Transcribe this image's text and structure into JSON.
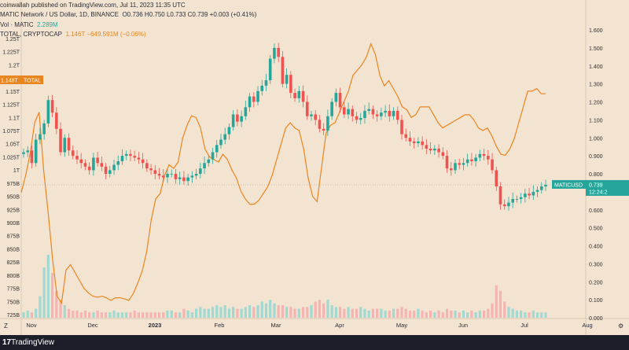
{
  "header": {
    "published": "coinwallah published on TradingView.com, Jul 11, 2023 11:35 UTC",
    "symbol": "MATIC Network / US Dollar, 1D, BINANCE",
    "ohlc": "O0.736  H0.750  L0.733  C0.739  +0.003 (+0.41%)",
    "vol_label": "Vol · MATIC",
    "vol_value": "2.289M",
    "total_label": "TOTAL, CRYPTOCAP",
    "total_value": "1.146T  −649.591M (−0.06%)"
  },
  "corner_left": "Z",
  "corner_right": "⚙",
  "footer": {
    "logo": "17",
    "brand": "TradingView"
  },
  "colors": {
    "up": "#26a69a",
    "down": "#ef5350",
    "total": "#e8851f",
    "vol_up": "#9fd9d2",
    "vol_down": "#f5b4b1"
  },
  "chart_data": {
    "type": "line",
    "x_labels": [
      "Nov",
      "Dec",
      "2023",
      "Feb",
      "Mar",
      "Apr",
      "May",
      "Jun",
      "Jul",
      "Aug"
    ],
    "left_ticks": [
      "1.25T",
      "1.225T",
      "1.2T",
      "1.175T",
      "1.15T",
      "1.125T",
      "1.1T",
      "1.075T",
      "1.05T",
      "1.025T",
      "1T",
      "975B",
      "950B",
      "925B",
      "900B",
      "875B",
      "850B",
      "825B",
      "800B",
      "775B",
      "750B",
      "725B"
    ],
    "right_ticks": [
      "1.600",
      "1.500",
      "1.400",
      "1.300",
      "1.200",
      "1.100",
      "1.000",
      "0.900",
      "0.800",
      "0.700",
      "0.600",
      "0.500",
      "0.400",
      "0.300",
      "0.200",
      "0.100",
      "0.000"
    ],
    "left_ylim": [
      725,
      1250
    ],
    "right_ylim": [
      0.0,
      1.6
    ],
    "left_unit": "B",
    "tags": {
      "total": {
        "label": "TOTAL",
        "value": "1.148T"
      },
      "matic": {
        "label": "MATICUSD",
        "value": "0.739",
        "countdown": "12:24:2"
      }
    },
    "matic_close": [
      0.92,
      0.93,
      0.86,
      0.99,
      1.02,
      1.08,
      1.21,
      1.14,
      1.05,
      0.92,
      1.0,
      0.93,
      0.9,
      0.88,
      0.86,
      0.84,
      0.82,
      0.89,
      0.86,
      0.84,
      0.8,
      0.82,
      0.85,
      0.87,
      0.9,
      0.91,
      0.9,
      0.89,
      0.88,
      0.86,
      0.83,
      0.82,
      0.8,
      0.79,
      0.78,
      0.8,
      0.8,
      0.77,
      0.78,
      0.76,
      0.78,
      0.79,
      0.8,
      0.83,
      0.86,
      0.88,
      0.92,
      0.96,
      0.99,
      1.02,
      1.06,
      1.13,
      1.09,
      1.12,
      1.17,
      1.23,
      1.2,
      1.26,
      1.29,
      1.32,
      1.44,
      1.5,
      1.45,
      1.3,
      1.35,
      1.25,
      1.22,
      1.26,
      1.2,
      1.12,
      1.13,
      1.1,
      1.05,
      1.04,
      1.12,
      1.2,
      1.25,
      1.17,
      1.13,
      1.16,
      1.12,
      1.1,
      1.11,
      1.15,
      1.16,
      1.13,
      1.12,
      1.14,
      1.15,
      1.12,
      1.15,
      1.1,
      1.02,
      1.0,
      0.98,
      0.97,
      0.98,
      0.96,
      0.94,
      0.93,
      0.94,
      0.92,
      0.9,
      0.83,
      0.82,
      0.86,
      0.85,
      0.86,
      0.88,
      0.87,
      0.89,
      0.91,
      0.9,
      0.88,
      0.82,
      0.73,
      0.63,
      0.62,
      0.64,
      0.66,
      0.66,
      0.67,
      0.69,
      0.68,
      0.7,
      0.71,
      0.73,
      0.739
    ],
    "total_mcap": [
      957,
      990,
      1032,
      1090,
      1110,
      1000,
      920,
      830,
      760,
      747,
      810,
      820,
      805,
      790,
      775,
      766,
      760,
      758,
      760,
      757,
      752,
      757,
      757,
      755,
      752,
      765,
      785,
      808,
      845,
      905,
      945,
      955,
      990,
      1010,
      1003,
      1015,
      1060,
      1085,
      1103,
      1100,
      1080,
      1040,
      1025,
      1020,
      1015,
      1030,
      1020,
      1000,
      985,
      960,
      945,
      935,
      935,
      942,
      955,
      968,
      990,
      1020,
      1050,
      1080,
      1090,
      1080,
      1075,
      1040,
      985,
      950,
      940,
      1005,
      1070,
      1085,
      1090,
      1110,
      1130,
      1150,
      1180,
      1190,
      1200,
      1215,
      1240,
      1220,
      1180,
      1160,
      1170,
      1155,
      1140,
      1120,
      1115,
      1100,
      1105,
      1120,
      1120,
      1120,
      1105,
      1090,
      1080,
      1085,
      1090,
      1095,
      1100,
      1105,
      1105,
      1095,
      1080,
      1075,
      1080,
      1065,
      1045,
      1030,
      1028,
      1040,
      1060,
      1090,
      1120,
      1150,
      1150,
      1155,
      1145,
      1145
    ],
    "volume": [
      0.03,
      0.04,
      0.03,
      0.05,
      0.12,
      0.28,
      0.35,
      0.25,
      0.15,
      0.1,
      0.07,
      0.05,
      0.04,
      0.04,
      0.03,
      0.04,
      0.03,
      0.03,
      0.04,
      0.03,
      0.03,
      0.03,
      0.04,
      0.03,
      0.03,
      0.03,
      0.03,
      0.04,
      0.03,
      0.03,
      0.03,
      0.03,
      0.03,
      0.03,
      0.03,
      0.04,
      0.04,
      0.03,
      0.03,
      0.05,
      0.04,
      0.03,
      0.05,
      0.06,
      0.05,
      0.05,
      0.06,
      0.07,
      0.06,
      0.07,
      0.05,
      0.06,
      0.05,
      0.05,
      0.06,
      0.07,
      0.06,
      0.07,
      0.09,
      0.08,
      0.1,
      0.08,
      0.07,
      0.07,
      0.06,
      0.06,
      0.05,
      0.05,
      0.06,
      0.06,
      0.07,
      0.09,
      0.1,
      0.08,
      0.1,
      0.07,
      0.06,
      0.06,
      0.05,
      0.06,
      0.05,
      0.05,
      0.06,
      0.05,
      0.04,
      0.05,
      0.05,
      0.05,
      0.04,
      0.04,
      0.05,
      0.05,
      0.06,
      0.05,
      0.04,
      0.04,
      0.05,
      0.04,
      0.03,
      0.04,
      0.03,
      0.04,
      0.03,
      0.05,
      0.04,
      0.04,
      0.03,
      0.04,
      0.03,
      0.04,
      0.03,
      0.04,
      0.04,
      0.05,
      0.08,
      0.18,
      0.15,
      0.09,
      0.06,
      0.05,
      0.04,
      0.04,
      0.03,
      0.03,
      0.04,
      0.03,
      0.03,
      0.03
    ]
  }
}
